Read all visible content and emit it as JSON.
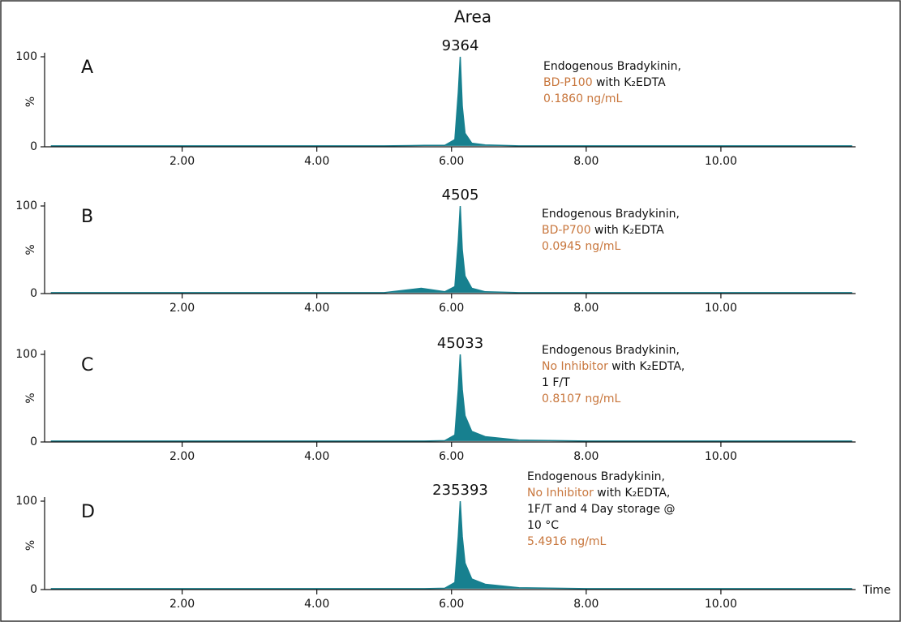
{
  "chart_data": [
    {
      "type": "line",
      "title": "Area",
      "label": "A",
      "peak_label": 9364,
      "ylabel": "%",
      "color": "#17808f",
      "note": [
        [
          {
            "text": "Endogenous Bradykinin,"
          }
        ],
        [
          {
            "text": "BD-P100",
            "color": "#c8763c"
          },
          {
            "text": " with K₂EDTA"
          }
        ],
        [
          {
            "text": "0.1860 ng/mL",
            "color": "#c8763c"
          }
        ]
      ],
      "x": [
        0.05,
        1,
        2,
        3,
        4,
        5,
        5.6,
        5.9,
        6.05,
        6.1,
        6.13,
        6.16,
        6.2,
        6.3,
        6.5,
        7,
        8,
        9,
        10,
        11,
        11.95
      ],
      "values": [
        1,
        1,
        1,
        1,
        1,
        1,
        1.5,
        1.5,
        8,
        60,
        100,
        45,
        15,
        4,
        2,
        1,
        1,
        1,
        1,
        1,
        1
      ],
      "xlim": [
        0,
        12
      ],
      "ylim": [
        0,
        100
      ],
      "yticks": [
        0,
        100
      ],
      "xticks": [
        {
          "value": 2,
          "label": "2.00"
        },
        {
          "value": 4,
          "label": "4.00"
        },
        {
          "value": 6,
          "label": "6.00"
        },
        {
          "value": 8,
          "label": "8.00"
        },
        {
          "value": 10,
          "label": "10.00"
        }
      ]
    },
    {
      "type": "line",
      "label": "B",
      "peak_label": 4505,
      "ylabel": "%",
      "color": "#17808f",
      "note": [
        [
          {
            "text": "Endogenous Bradykinin,"
          }
        ],
        [
          {
            "text": "BD-P700",
            "color": "#c8763c"
          },
          {
            "text": " with K₂EDTA"
          }
        ],
        [
          {
            "text": "0.0945 ng/mL",
            "color": "#c8763c"
          }
        ]
      ],
      "x": [
        0.05,
        1,
        2,
        3,
        4,
        5,
        5.55,
        5.9,
        6.05,
        6.1,
        6.13,
        6.16,
        6.2,
        6.3,
        6.5,
        7,
        8,
        9,
        10,
        11,
        11.95
      ],
      "values": [
        1,
        1,
        1,
        1,
        1,
        1,
        6,
        2,
        8,
        60,
        100,
        50,
        20,
        6,
        2,
        1,
        1,
        1,
        1,
        1,
        1
      ],
      "xlim": [
        0,
        12
      ],
      "ylim": [
        0,
        100
      ],
      "yticks": [
        0,
        100
      ],
      "xticks": [
        {
          "value": 2,
          "label": "2.00"
        },
        {
          "value": 4,
          "label": "4.00"
        },
        {
          "value": 6,
          "label": "6.00"
        },
        {
          "value": 8,
          "label": "8.00"
        },
        {
          "value": 10,
          "label": "10.00"
        }
      ]
    },
    {
      "type": "line",
      "label": "C",
      "peak_label": 45033,
      "ylabel": "%",
      "color": "#17808f",
      "note": [
        [
          {
            "text": "Endogenous Bradykinin,"
          }
        ],
        [
          {
            "text": "No Inhibitor",
            "color": "#c8763c"
          },
          {
            "text": " with K₂EDTA,"
          }
        ],
        [
          {
            "text": "1 F/T"
          }
        ],
        [
          {
            "text": "0.8107 ng/mL",
            "color": "#c8763c"
          }
        ]
      ],
      "x": [
        0.05,
        1,
        2,
        3,
        4,
        5,
        5.6,
        5.9,
        6.05,
        6.1,
        6.13,
        6.16,
        6.2,
        6.3,
        6.5,
        7,
        8,
        9,
        10,
        11,
        11.95
      ],
      "values": [
        1,
        1,
        1,
        1,
        1,
        1,
        1,
        1.5,
        8,
        60,
        100,
        60,
        30,
        12,
        6,
        2,
        1,
        1,
        1,
        1,
        1
      ],
      "xlim": [
        0,
        12
      ],
      "ylim": [
        0,
        100
      ],
      "yticks": [
        0,
        100
      ],
      "xticks": [
        {
          "value": 2,
          "label": "2.00"
        },
        {
          "value": 4,
          "label": "4.00"
        },
        {
          "value": 6,
          "label": "6.00"
        },
        {
          "value": 8,
          "label": "8.00"
        },
        {
          "value": 10,
          "label": "10.00"
        }
      ]
    },
    {
      "type": "line",
      "label": "D",
      "peak_label": 235393,
      "ylabel": "%",
      "xlabel": "Time",
      "color": "#17808f",
      "note": [
        [
          {
            "text": "Endogenous Bradykinin,"
          }
        ],
        [
          {
            "text": "No Inhibitor",
            "color": "#c8763c"
          },
          {
            "text": " with K₂EDTA,"
          }
        ],
        [
          {
            "text": "1F/T and 4 Day storage @"
          }
        ],
        [
          {
            "text": "10 °C"
          }
        ],
        [
          {
            "text": "5.4916 ng/mL",
            "color": "#c8763c"
          }
        ]
      ],
      "x": [
        0.05,
        1,
        2,
        3,
        4,
        5,
        5.6,
        5.9,
        6.05,
        6.1,
        6.13,
        6.16,
        6.2,
        6.3,
        6.5,
        7,
        8,
        9,
        10,
        11,
        11.95
      ],
      "values": [
        1,
        1,
        1,
        1,
        1,
        1,
        1,
        1.5,
        8,
        60,
        100,
        60,
        30,
        12,
        6,
        2,
        1,
        1,
        1,
        1,
        1
      ],
      "xlim": [
        0,
        12
      ],
      "ylim": [
        0,
        100
      ],
      "yticks": [
        0,
        100
      ],
      "xticks": [
        {
          "value": 2,
          "label": "2.00"
        },
        {
          "value": 4,
          "label": "4.00"
        },
        {
          "value": 6,
          "label": "6.00"
        },
        {
          "value": 8,
          "label": "8.00"
        },
        {
          "value": 10,
          "label": "10.00"
        }
      ]
    }
  ]
}
